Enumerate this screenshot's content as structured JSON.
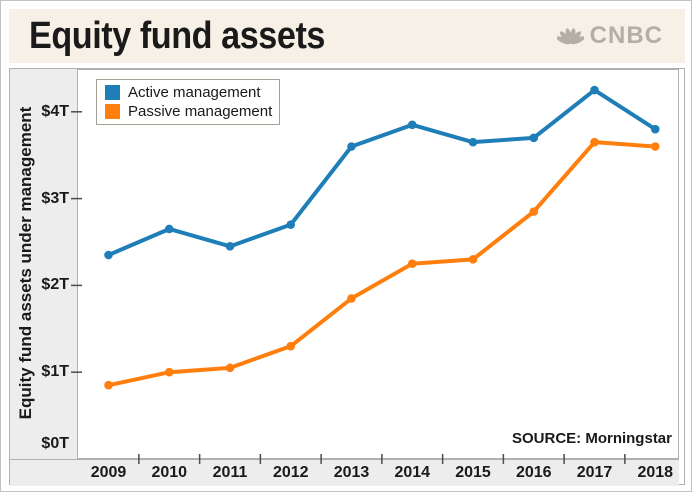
{
  "header": {
    "title": "Equity fund assets",
    "brand": "CNBC"
  },
  "source_note": "SOURCE: Morningstar",
  "chart_data": {
    "type": "line",
    "title": "Equity fund assets",
    "categories": [
      "2009",
      "2010",
      "2011",
      "2012",
      "2013",
      "2014",
      "2015",
      "2016",
      "2017",
      "2018"
    ],
    "series": [
      {
        "name": "Active management",
        "color": "#1f7eb8",
        "values": [
          2.35,
          2.65,
          2.45,
          2.7,
          3.6,
          3.85,
          3.65,
          3.7,
          4.25,
          3.8
        ]
      },
      {
        "name": "Passive management",
        "color": "#ff7f0e",
        "values": [
          0.85,
          1.0,
          1.05,
          1.3,
          1.85,
          2.25,
          2.3,
          2.85,
          3.65,
          3.6
        ]
      }
    ],
    "xlabel": "",
    "ylabel": "Equity fund assets under management",
    "unit_suffix": "T",
    "yticks": [
      {
        "value": 0,
        "label": "$0T"
      },
      {
        "value": 1,
        "label": "$1T"
      },
      {
        "value": 2,
        "label": "$2T"
      },
      {
        "value": 3,
        "label": "$3T"
      },
      {
        "value": 4,
        "label": "$4T"
      }
    ],
    "ylim": [
      0,
      4.5
    ],
    "grid": false,
    "legend_position": "top-left",
    "marker": "dot",
    "line_width": 4
  }
}
